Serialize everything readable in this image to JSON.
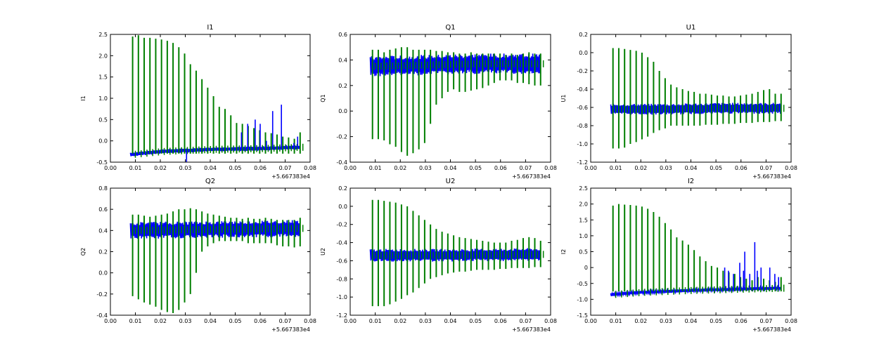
{
  "figure": {
    "background": "#ffffff",
    "series_colors": [
      "#0000ff",
      "#007f00"
    ]
  },
  "chart_data": [
    {
      "type": "line",
      "title": "I1",
      "ylabel": "I1",
      "xlim": [
        0.0,
        0.08
      ],
      "ylim": [
        -0.5,
        2.5
      ],
      "x_offset_label": "+5.667383e4",
      "xticks": [
        "0.00",
        "0.01",
        "0.02",
        "0.03",
        "0.04",
        "0.05",
        "0.06",
        "0.07",
        "0.08"
      ],
      "yticks": [
        "-0.5",
        "0.0",
        "0.5",
        "1.0",
        "1.5",
        "2.0",
        "2.5"
      ],
      "x_range": [
        0.008,
        0.076
      ],
      "series": [
        {
          "color": "#0000ff",
          "baseline": [
            [
              0.008,
              -0.32
            ],
            [
              0.02,
              -0.25
            ],
            [
              0.04,
              -0.2
            ],
            [
              0.06,
              -0.18
            ],
            [
              0.076,
              -0.15
            ]
          ],
          "band": 0.1,
          "spikes": [
            [
              0.0305,
              -0.52
            ],
            [
              0.0525,
              0.2
            ],
            [
              0.055,
              0.4
            ],
            [
              0.058,
              0.5
            ],
            [
              0.06,
              0.4
            ],
            [
              0.0625,
              0.0
            ],
            [
              0.065,
              0.7
            ],
            [
              0.0675,
              -0.2
            ],
            [
              0.0685,
              0.85
            ],
            [
              0.0705,
              -0.1
            ],
            [
              0.0735,
              -0.05
            ],
            [
              0.075,
              0.1
            ]
          ]
        },
        {
          "color": "#007f00",
          "spike_tops": [
            2.45,
            2.48,
            2.42,
            2.42,
            2.4,
            2.38,
            2.35,
            2.3,
            2.2,
            2.05,
            1.8,
            1.65,
            1.45,
            1.25,
            1.05,
            0.8,
            0.75,
            0.6,
            0.42,
            0.4,
            0.35,
            0.3,
            0.25,
            0.2,
            0.18,
            0.15,
            0.1,
            0.08,
            0.05,
            0.2
          ],
          "spike_bottom": -0.3
        }
      ]
    },
    {
      "type": "line",
      "title": "Q1",
      "ylabel": "Q1",
      "xlim": [
        0.0,
        0.08
      ],
      "ylim": [
        -0.4,
        0.6
      ],
      "x_offset_label": "+5.667383e4",
      "xticks": [
        "0.00",
        "0.01",
        "0.02",
        "0.03",
        "0.04",
        "0.05",
        "0.06",
        "0.07",
        "0.08"
      ],
      "yticks": [
        "-0.4",
        "-0.2",
        "0.0",
        "0.2",
        "0.4",
        "0.6"
      ],
      "x_range": [
        0.008,
        0.076
      ],
      "series": [
        {
          "color": "#0000ff",
          "baseline": [
            [
              0.008,
              0.35
            ],
            [
              0.03,
              0.36
            ],
            [
              0.05,
              0.37
            ],
            [
              0.076,
              0.37
            ]
          ],
          "band": 0.16,
          "spikes": []
        },
        {
          "color": "#007f00",
          "spike_tops": [
            0.48,
            0.48,
            0.46,
            0.48,
            0.49,
            0.5,
            0.5,
            0.48,
            0.48,
            0.48,
            0.48,
            0.47,
            0.47,
            0.46,
            0.46,
            0.45,
            0.45,
            0.46,
            0.45,
            0.45,
            0.45,
            0.45,
            0.45,
            0.44,
            0.45,
            0.44,
            0.45,
            0.46,
            0.45,
            0.45
          ],
          "spike_bottoms": [
            -0.22,
            -0.22,
            -0.23,
            -0.26,
            -0.28,
            -0.32,
            -0.35,
            -0.33,
            -0.3,
            -0.25,
            -0.1,
            0.05,
            0.1,
            0.15,
            0.17,
            0.15,
            0.15,
            0.16,
            0.17,
            0.18,
            0.2,
            0.22,
            0.24,
            0.24,
            0.24,
            0.22,
            0.22,
            0.21,
            0.2,
            0.2
          ]
        }
      ]
    },
    {
      "type": "line",
      "title": "U1",
      "ylabel": "U1",
      "xlim": [
        0.0,
        0.08
      ],
      "ylim": [
        -1.2,
        0.2
      ],
      "x_offset_label": "+5.667383e4",
      "xticks": [
        "0.00",
        "0.01",
        "0.02",
        "0.03",
        "0.04",
        "0.05",
        "0.06",
        "0.07",
        "0.08"
      ],
      "yticks": [
        "-1.2",
        "-1.0",
        "-0.8",
        "-0.6",
        "-0.4",
        "-0.2",
        "0.0",
        "0.2"
      ],
      "x_range": [
        0.008,
        0.076
      ],
      "series": [
        {
          "color": "#0000ff",
          "baseline": [
            [
              0.008,
              -0.62
            ],
            [
              0.03,
              -0.62
            ],
            [
              0.05,
              -0.61
            ],
            [
              0.076,
              -0.61
            ]
          ],
          "band": 0.12,
          "spikes": []
        },
        {
          "color": "#007f00",
          "spike_tops": [
            0.05,
            0.05,
            0.04,
            0.03,
            0.02,
            0.0,
            -0.05,
            -0.1,
            -0.2,
            -0.28,
            -0.35,
            -0.38,
            -0.4,
            -0.42,
            -0.43,
            -0.45,
            -0.45,
            -0.46,
            -0.47,
            -0.47,
            -0.48,
            -0.48,
            -0.47,
            -0.46,
            -0.45,
            -0.43,
            -0.41,
            -0.4,
            -0.45,
            -0.45
          ],
          "spike_bottoms": [
            -1.05,
            -1.05,
            -1.04,
            -1.0,
            -0.98,
            -0.95,
            -0.92,
            -0.88,
            -0.85,
            -0.83,
            -0.8,
            -0.8,
            -0.8,
            -0.8,
            -0.8,
            -0.8,
            -0.79,
            -0.79,
            -0.79,
            -0.78,
            -0.78,
            -0.78,
            -0.77,
            -0.77,
            -0.77,
            -0.76,
            -0.76,
            -0.76,
            -0.75,
            -0.75
          ]
        }
      ]
    },
    {
      "type": "line",
      "title": "Q2",
      "ylabel": "Q2",
      "xlim": [
        0.0,
        0.08
      ],
      "ylim": [
        -0.4,
        0.8
      ],
      "x_offset_label": "+5.667383e4",
      "xticks": [
        "0.00",
        "0.01",
        "0.02",
        "0.03",
        "0.04",
        "0.05",
        "0.06",
        "0.07",
        "0.08"
      ],
      "yticks": [
        "-0.4",
        "-0.2",
        "0.0",
        "0.2",
        "0.4",
        "0.6",
        "0.8"
      ],
      "x_range": [
        0.008,
        0.076
      ],
      "series": [
        {
          "color": "#0000ff",
          "baseline": [
            [
              0.008,
              0.4
            ],
            [
              0.04,
              0.41
            ],
            [
              0.076,
              0.42
            ]
          ],
          "band": 0.16,
          "spikes": []
        },
        {
          "color": "#007f00",
          "spike_tops": [
            0.55,
            0.55,
            0.54,
            0.53,
            0.54,
            0.55,
            0.56,
            0.58,
            0.6,
            0.6,
            0.61,
            0.6,
            0.58,
            0.56,
            0.55,
            0.54,
            0.53,
            0.52,
            0.52,
            0.51,
            0.52,
            0.51,
            0.51,
            0.52,
            0.51,
            0.5,
            0.5,
            0.5,
            0.5,
            0.52
          ],
          "spike_bottoms": [
            -0.22,
            -0.25,
            -0.28,
            -0.3,
            -0.32,
            -0.35,
            -0.37,
            -0.38,
            -0.35,
            -0.28,
            -0.2,
            0.0,
            0.2,
            0.25,
            0.28,
            0.3,
            0.3,
            0.3,
            0.3,
            0.3,
            0.28,
            0.28,
            0.28,
            0.28,
            0.28,
            0.26,
            0.25,
            0.25,
            0.24,
            0.25
          ]
        }
      ]
    },
    {
      "type": "line",
      "title": "U2",
      "ylabel": "U2",
      "xlim": [
        0.0,
        0.08
      ],
      "ylim": [
        -1.2,
        0.2
      ],
      "x_offset_label": "+5.667383e4",
      "xticks": [
        "0.00",
        "0.01",
        "0.02",
        "0.03",
        "0.04",
        "0.05",
        "0.06",
        "0.07",
        "0.08"
      ],
      "yticks": [
        "-1.2",
        "-1.0",
        "-0.8",
        "-0.6",
        "-0.4",
        "-0.2",
        "0.0",
        "0.2"
      ],
      "x_range": [
        0.008,
        0.076
      ],
      "series": [
        {
          "color": "#0000ff",
          "baseline": [
            [
              0.008,
              -0.54
            ],
            [
              0.04,
              -0.54
            ],
            [
              0.076,
              -0.53
            ]
          ],
          "band": 0.14,
          "spikes": []
        },
        {
          "color": "#007f00",
          "spike_tops": [
            0.07,
            0.07,
            0.06,
            0.05,
            0.04,
            0.02,
            0.0,
            -0.05,
            -0.1,
            -0.15,
            -0.2,
            -0.25,
            -0.28,
            -0.3,
            -0.32,
            -0.34,
            -0.35,
            -0.36,
            -0.37,
            -0.38,
            -0.39,
            -0.4,
            -0.4,
            -0.4,
            -0.38,
            -0.37,
            -0.35,
            -0.34,
            -0.35,
            -0.38
          ],
          "spike_bottoms": [
            -1.1,
            -1.1,
            -1.1,
            -1.08,
            -1.05,
            -1.02,
            -0.98,
            -0.95,
            -0.9,
            -0.85,
            -0.8,
            -0.78,
            -0.76,
            -0.74,
            -0.73,
            -0.72,
            -0.72,
            -0.71,
            -0.7,
            -0.7,
            -0.7,
            -0.7,
            -0.69,
            -0.69,
            -0.68,
            -0.68,
            -0.68,
            -0.68,
            -0.67,
            -0.67
          ]
        }
      ]
    },
    {
      "type": "line",
      "title": "I2",
      "ylabel": "I2",
      "xlim": [
        0.0,
        0.08
      ],
      "ylim": [
        -1.5,
        2.5
      ],
      "x_offset_label": "+5.667383e4",
      "xticks": [
        "0.00",
        "0.01",
        "0.02",
        "0.03",
        "0.04",
        "0.05",
        "0.06",
        "0.07",
        "0.08"
      ],
      "yticks": [
        "-1.5",
        "-1.0",
        "-0.5",
        "0",
        "0.5",
        "1.0",
        "1.5",
        "2.0",
        "2.5"
      ],
      "x_range": [
        0.008,
        0.076
      ],
      "series": [
        {
          "color": "#0000ff",
          "baseline": [
            [
              0.008,
              -0.85
            ],
            [
              0.02,
              -0.78
            ],
            [
              0.04,
              -0.72
            ],
            [
              0.06,
              -0.68
            ],
            [
              0.076,
              -0.65
            ]
          ],
          "band": 0.1,
          "spikes": [
            [
              0.0535,
              0.0
            ],
            [
              0.055,
              -0.1
            ],
            [
              0.057,
              -0.2
            ],
            [
              0.0595,
              0.15
            ],
            [
              0.061,
              -0.1
            ],
            [
              0.0615,
              0.5
            ],
            [
              0.0635,
              -0.2
            ],
            [
              0.0655,
              0.8
            ],
            [
              0.0665,
              -0.1
            ],
            [
              0.068,
              0.0
            ],
            [
              0.0715,
              0.0
            ],
            [
              0.0735,
              -0.2
            ],
            [
              0.075,
              -0.3
            ]
          ]
        },
        {
          "color": "#007f00",
          "spike_tops": [
            1.95,
            2.0,
            1.98,
            1.97,
            1.95,
            1.92,
            1.85,
            1.75,
            1.6,
            1.4,
            1.2,
            0.95,
            0.85,
            0.72,
            0.55,
            0.35,
            0.2,
            0.05,
            0.0,
            -0.1,
            -0.15,
            -0.2,
            -0.3,
            -0.35,
            -0.4,
            -0.3,
            -0.35,
            -0.4,
            -0.45,
            -0.3
          ],
          "spike_bottom": -0.75
        }
      ]
    }
  ]
}
